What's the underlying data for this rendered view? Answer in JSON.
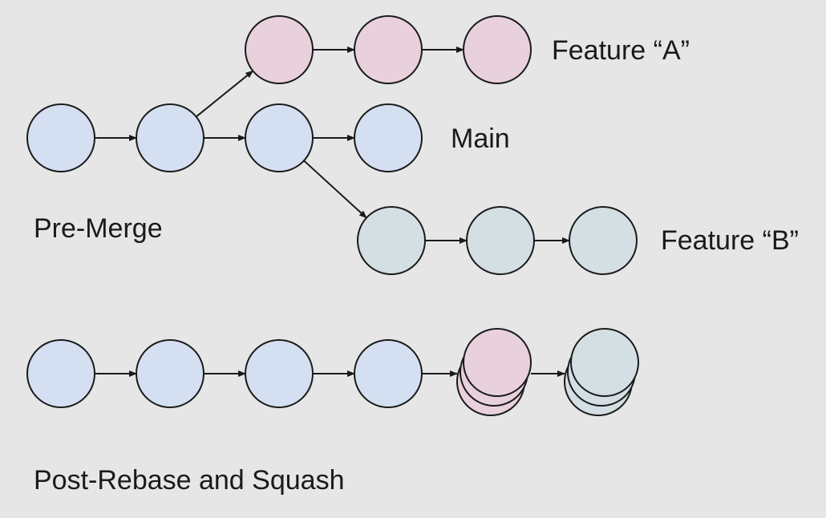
{
  "colors": {
    "background": "#e6e6e6",
    "main_commit": "#d4e0f1",
    "feature_a_commit": "#e8d0dc",
    "feature_b_commit": "#d3dfe3",
    "stroke": "#1a1a1a"
  },
  "labels": {
    "feature_a": "Feature “A”",
    "main": "Main",
    "feature_b": "Feature “B”",
    "pre_merge": "Pre-Merge",
    "post_rebase": "Post-Rebase and Squash"
  },
  "diagram": {
    "pre_merge": {
      "main_commits": 4,
      "feature_a_commits": 3,
      "feature_a_branches_after_main_commit": 2,
      "feature_b_commits": 3,
      "feature_b_branches_after_main_commit": 3
    },
    "post_rebase": {
      "main_commits": 4,
      "squashed_groups": [
        {
          "branch": "feature_a",
          "stacked_commits": 3
        },
        {
          "branch": "feature_b",
          "stacked_commits": 3
        }
      ]
    }
  }
}
